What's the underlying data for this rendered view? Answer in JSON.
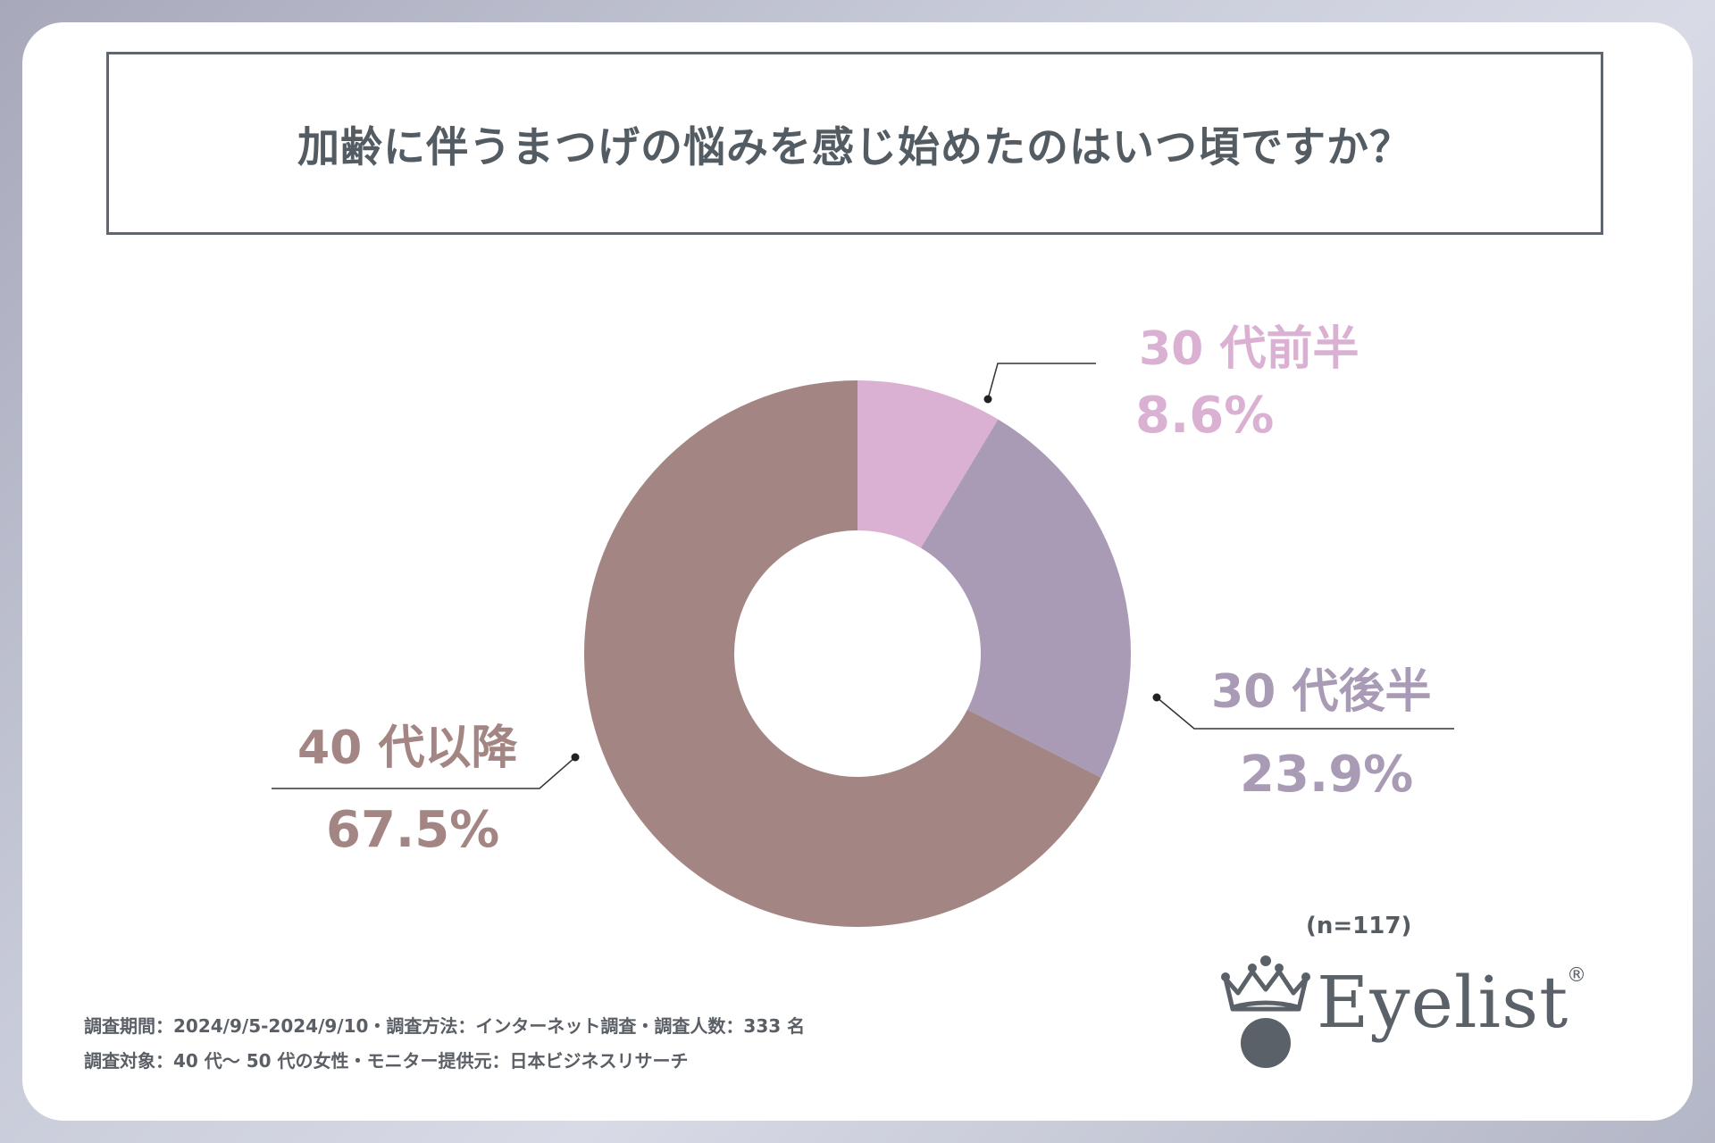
{
  "title": "加齢に伴うまつげの悩みを感じ始めたのはいつ頃ですか？",
  "sample_size": "(n=117)",
  "footer": {
    "line1": "調査期間：2024/9/5-2024/9/10・調査方法：インターネット調査・調査人数：333 名",
    "line2": "調査対象：40 代～ 50 代の女性・モニター提供元：日本ビジネスリサーチ"
  },
  "logo": {
    "text": "Eyelist",
    "reg": "®"
  },
  "colors": {
    "early30s": "#dab1d3",
    "late30s": "#a99bb5",
    "over40": "#a38683",
    "title": "#535b63"
  },
  "chart_data": {
    "type": "pie",
    "title": "加齢に伴うまつげの悩みを感じ始めたのはいつ頃ですか？",
    "donut": true,
    "slices": [
      {
        "key": "early30s",
        "label": "30 代前半",
        "value": 8.6,
        "value_label": "8.6%"
      },
      {
        "key": "late30s",
        "label": "30 代後半",
        "value": 23.9,
        "value_label": "23.9%"
      },
      {
        "key": "over40",
        "label": "40 代以降",
        "value": 67.5,
        "value_label": "67.5%"
      }
    ]
  }
}
